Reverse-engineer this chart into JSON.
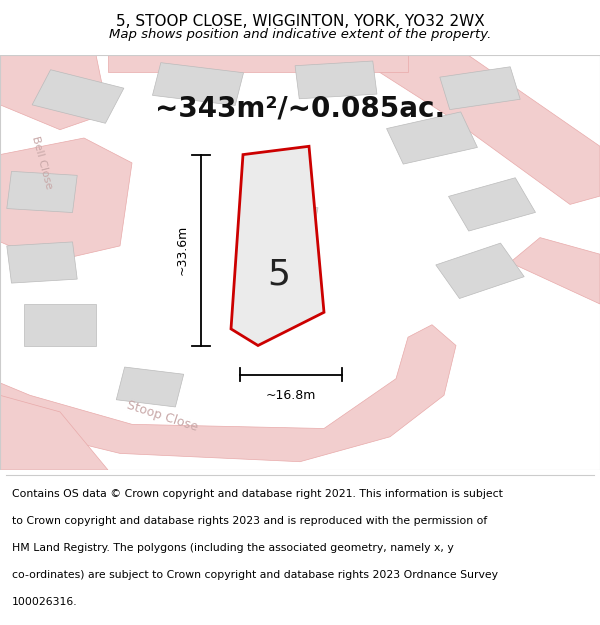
{
  "title_line1": "5, STOOP CLOSE, WIGGINTON, YORK, YO32 2WX",
  "title_line2": "Map shows position and indicative extent of the property.",
  "area_text": "~343m²/~0.085ac.",
  "plot_number": "5",
  "dim_vertical": "~33.6m",
  "dim_horizontal": "~16.8m",
  "street_name_stoop": "Stoop Close",
  "street_name_bell": "Bell Close",
  "footer_lines": [
    "Contains OS data © Crown copyright and database right 2021. This information is subject",
    "to Crown copyright and database rights 2023 and is reproduced with the permission of",
    "HM Land Registry. The polygons (including the associated geometry, namely x, y",
    "co-ordinates) are subject to Crown copyright and database rights 2023 Ordnance Survey",
    "100026316."
  ],
  "bg_color": "#ffffff",
  "road_color": "#f2cece",
  "road_outline": "#e8aaaa",
  "building_fill": "#d8d8d8",
  "building_outline": "#bbbbbb",
  "plot_fill": "#ebebeb",
  "plot_outline": "#cc0000",
  "dim_line_color": "#000000",
  "text_color": "#000000",
  "street_text_color": "#c8a8a8",
  "title_fontsize": 11,
  "subtitle_fontsize": 9.5,
  "area_fontsize": 20,
  "plot_num_fontsize": 26,
  "footer_fontsize": 7.8,
  "map_border_color": "#cccccc",
  "separator_color": "#cccccc"
}
